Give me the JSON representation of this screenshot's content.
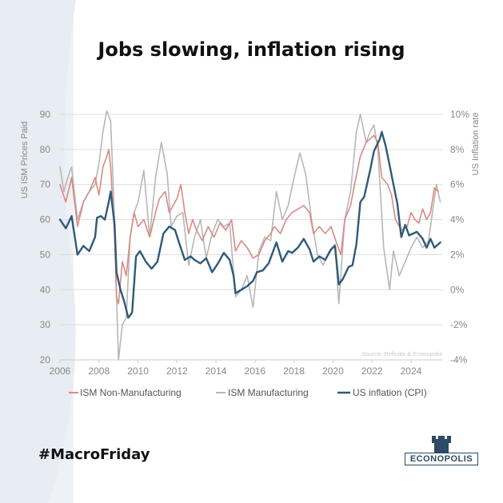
{
  "title": "Jobs slowing, inflation rising",
  "hashtag": "#MacroFriday",
  "brand": "ECONOPOLIS",
  "colors": {
    "ism_services": "#d98a82",
    "ism_manufacturing": "#b7b7b7",
    "cpi": "#2f5a7a",
    "brand": "#2d4a66",
    "grid": "#dddddd",
    "axis_text": "#888888"
  },
  "chart_data": {
    "type": "line",
    "title": "Jobs slowing, inflation rising",
    "xlabel": "",
    "ylabel": "US ISM Prices Paid",
    "ylabel_right": "US Inflation rate",
    "source": "Source: Refinitiv & Econopolis",
    "xlim": [
      2006,
      2025.6
    ],
    "ylim": [
      20,
      90
    ],
    "ylim_right": [
      -4,
      10
    ],
    "x_ticks": [
      "2006",
      "2008",
      "2010",
      "2012",
      "2014",
      "2016",
      "2018",
      "2020",
      "2022",
      "2024"
    ],
    "y_ticks": [
      "20",
      "30",
      "40",
      "50",
      "60",
      "70",
      "80",
      "90"
    ],
    "y_ticks_right": [
      "-4%",
      "-2%",
      "0%",
      "2%",
      "4%",
      "6%",
      "8%",
      "10%"
    ],
    "grid": true,
    "legend_position": "bottom",
    "series": [
      {
        "name": "ISM Non-Manufacturing",
        "axis": "left",
        "points": [
          [
            2006.0,
            70
          ],
          [
            2006.3,
            65
          ],
          [
            2006.6,
            72
          ],
          [
            2006.9,
            58
          ],
          [
            2007.2,
            65
          ],
          [
            2007.5,
            68
          ],
          [
            2007.8,
            72
          ],
          [
            2008.0,
            67
          ],
          [
            2008.2,
            75
          ],
          [
            2008.4,
            78
          ],
          [
            2008.5,
            80
          ],
          [
            2008.6,
            75
          ],
          [
            2008.8,
            55
          ],
          [
            2008.9,
            38
          ],
          [
            2009.0,
            36
          ],
          [
            2009.2,
            48
          ],
          [
            2009.4,
            44
          ],
          [
            2009.6,
            55
          ],
          [
            2009.8,
            62
          ],
          [
            2010.0,
            58
          ],
          [
            2010.3,
            60
          ],
          [
            2010.6,
            55
          ],
          [
            2010.9,
            62
          ],
          [
            2011.1,
            66
          ],
          [
            2011.4,
            68
          ],
          [
            2011.6,
            62
          ],
          [
            2011.9,
            65
          ],
          [
            2012.0,
            66
          ],
          [
            2012.2,
            70
          ],
          [
            2012.4,
            62
          ],
          [
            2012.6,
            56
          ],
          [
            2012.8,
            60
          ],
          [
            2013.0,
            57
          ],
          [
            2013.3,
            54
          ],
          [
            2013.6,
            58
          ],
          [
            2013.9,
            55
          ],
          [
            2014.2,
            59
          ],
          [
            2014.5,
            57
          ],
          [
            2014.8,
            60
          ],
          [
            2015.0,
            51
          ],
          [
            2015.3,
            54
          ],
          [
            2015.6,
            52
          ],
          [
            2015.9,
            49
          ],
          [
            2016.2,
            50
          ],
          [
            2016.5,
            54
          ],
          [
            2016.8,
            56
          ],
          [
            2017.0,
            58
          ],
          [
            2017.3,
            56
          ],
          [
            2017.6,
            60
          ],
          [
            2017.9,
            62
          ],
          [
            2018.2,
            63
          ],
          [
            2018.5,
            64
          ],
          [
            2018.8,
            62
          ],
          [
            2019.0,
            56
          ],
          [
            2019.3,
            58
          ],
          [
            2019.6,
            56
          ],
          [
            2019.9,
            58
          ],
          [
            2020.2,
            53
          ],
          [
            2020.4,
            50
          ],
          [
            2020.6,
            60
          ],
          [
            2020.9,
            64
          ],
          [
            2021.1,
            70
          ],
          [
            2021.4,
            78
          ],
          [
            2021.7,
            82
          ],
          [
            2021.9,
            83
          ],
          [
            2022.1,
            84
          ],
          [
            2022.3,
            82
          ],
          [
            2022.5,
            72
          ],
          [
            2022.8,
            70
          ],
          [
            2023.0,
            67
          ],
          [
            2023.2,
            60
          ],
          [
            2023.5,
            57
          ],
          [
            2023.8,
            58
          ],
          [
            2024.0,
            62
          ],
          [
            2024.2,
            60
          ],
          [
            2024.4,
            59
          ],
          [
            2024.6,
            63
          ],
          [
            2024.8,
            60
          ],
          [
            2025.0,
            62
          ],
          [
            2025.2,
            69
          ],
          [
            2025.4,
            68
          ]
        ]
      },
      {
        "name": "ISM Manufacturing",
        "axis": "left",
        "points": [
          [
            2006.0,
            75
          ],
          [
            2006.2,
            68
          ],
          [
            2006.4,
            72
          ],
          [
            2006.6,
            75
          ],
          [
            2006.9,
            60
          ],
          [
            2007.2,
            65
          ],
          [
            2007.5,
            68
          ],
          [
            2007.8,
            70
          ],
          [
            2008.0,
            76
          ],
          [
            2008.2,
            85
          ],
          [
            2008.4,
            91
          ],
          [
            2008.6,
            88
          ],
          [
            2008.8,
            60
          ],
          [
            2008.9,
            38
          ],
          [
            2009.0,
            20
          ],
          [
            2009.2,
            30
          ],
          [
            2009.4,
            32
          ],
          [
            2009.6,
            55
          ],
          [
            2009.8,
            62
          ],
          [
            2010.0,
            65
          ],
          [
            2010.3,
            74
          ],
          [
            2010.6,
            55
          ],
          [
            2010.9,
            72
          ],
          [
            2011.2,
            82
          ],
          [
            2011.5,
            73
          ],
          [
            2011.7,
            58
          ],
          [
            2012.0,
            61
          ],
          [
            2012.3,
            62
          ],
          [
            2012.6,
            47
          ],
          [
            2012.9,
            55
          ],
          [
            2013.2,
            60
          ],
          [
            2013.5,
            49
          ],
          [
            2013.8,
            56
          ],
          [
            2014.1,
            60
          ],
          [
            2014.4,
            58
          ],
          [
            2014.7,
            59
          ],
          [
            2015.0,
            38
          ],
          [
            2015.3,
            40
          ],
          [
            2015.6,
            44
          ],
          [
            2015.9,
            35
          ],
          [
            2016.2,
            51
          ],
          [
            2016.5,
            55
          ],
          [
            2016.8,
            54
          ],
          [
            2017.1,
            68
          ],
          [
            2017.4,
            60
          ],
          [
            2017.7,
            64
          ],
          [
            2018.0,
            72
          ],
          [
            2018.3,
            79
          ],
          [
            2018.6,
            73
          ],
          [
            2018.9,
            60
          ],
          [
            2019.2,
            50
          ],
          [
            2019.5,
            47
          ],
          [
            2019.8,
            51
          ],
          [
            2020.1,
            53
          ],
          [
            2020.3,
            36
          ],
          [
            2020.6,
            60
          ],
          [
            2020.9,
            68
          ],
          [
            2021.2,
            85
          ],
          [
            2021.4,
            90
          ],
          [
            2021.7,
            82
          ],
          [
            2021.9,
            85
          ],
          [
            2022.1,
            87
          ],
          [
            2022.3,
            80
          ],
          [
            2022.6,
            52
          ],
          [
            2022.9,
            40
          ],
          [
            2023.1,
            51
          ],
          [
            2023.4,
            44
          ],
          [
            2023.7,
            48
          ],
          [
            2024.0,
            52
          ],
          [
            2024.3,
            55
          ],
          [
            2024.6,
            52
          ],
          [
            2024.9,
            54
          ],
          [
            2025.1,
            62
          ],
          [
            2025.3,
            70
          ],
          [
            2025.5,
            65
          ]
        ]
      },
      {
        "name": "US inflation (CPI)",
        "axis": "right",
        "points": [
          [
            2006.0,
            4.0
          ],
          [
            2006.3,
            3.5
          ],
          [
            2006.6,
            4.2
          ],
          [
            2006.9,
            2.0
          ],
          [
            2007.2,
            2.5
          ],
          [
            2007.5,
            2.2
          ],
          [
            2007.8,
            3.0
          ],
          [
            2007.9,
            4.1
          ],
          [
            2008.1,
            4.2
          ],
          [
            2008.3,
            4.0
          ],
          [
            2008.5,
            5.0
          ],
          [
            2008.6,
            5.6
          ],
          [
            2008.8,
            3.7
          ],
          [
            2008.9,
            1.0
          ],
          [
            2009.1,
            0.0
          ],
          [
            2009.3,
            -0.7
          ],
          [
            2009.5,
            -1.6
          ],
          [
            2009.7,
            -1.3
          ],
          [
            2009.9,
            1.9
          ],
          [
            2010.1,
            2.2
          ],
          [
            2010.4,
            1.6
          ],
          [
            2010.7,
            1.2
          ],
          [
            2011.0,
            1.6
          ],
          [
            2011.3,
            3.2
          ],
          [
            2011.6,
            3.6
          ],
          [
            2011.9,
            3.4
          ],
          [
            2012.1,
            2.7
          ],
          [
            2012.4,
            1.7
          ],
          [
            2012.7,
            1.9
          ],
          [
            2012.9,
            1.7
          ],
          [
            2013.2,
            1.5
          ],
          [
            2013.5,
            1.8
          ],
          [
            2013.8,
            1.0
          ],
          [
            2014.1,
            1.5
          ],
          [
            2014.4,
            2.1
          ],
          [
            2014.7,
            1.7
          ],
          [
            2014.9,
            0.8
          ],
          [
            2015.0,
            -0.2
          ],
          [
            2015.3,
            0.0
          ],
          [
            2015.6,
            0.2
          ],
          [
            2015.9,
            0.5
          ],
          [
            2016.1,
            1.0
          ],
          [
            2016.4,
            1.1
          ],
          [
            2016.7,
            1.5
          ],
          [
            2016.9,
            2.1
          ],
          [
            2017.1,
            2.7
          ],
          [
            2017.4,
            1.6
          ],
          [
            2017.7,
            2.2
          ],
          [
            2017.9,
            2.1
          ],
          [
            2018.2,
            2.4
          ],
          [
            2018.5,
            2.9
          ],
          [
            2018.8,
            2.3
          ],
          [
            2019.0,
            1.6
          ],
          [
            2019.3,
            1.9
          ],
          [
            2019.6,
            1.7
          ],
          [
            2019.9,
            2.3
          ],
          [
            2020.1,
            2.5
          ],
          [
            2020.3,
            0.3
          ],
          [
            2020.5,
            0.6
          ],
          [
            2020.8,
            1.3
          ],
          [
            2021.0,
            1.4
          ],
          [
            2021.2,
            2.6
          ],
          [
            2021.4,
            5.0
          ],
          [
            2021.6,
            5.3
          ],
          [
            2021.9,
            6.8
          ],
          [
            2022.1,
            7.9
          ],
          [
            2022.4,
            8.6
          ],
          [
            2022.5,
            9.0
          ],
          [
            2022.7,
            8.2
          ],
          [
            2022.9,
            7.1
          ],
          [
            2023.1,
            6.0
          ],
          [
            2023.3,
            4.9
          ],
          [
            2023.5,
            3.0
          ],
          [
            2023.7,
            3.7
          ],
          [
            2023.9,
            3.1
          ],
          [
            2024.1,
            3.2
          ],
          [
            2024.3,
            3.3
          ],
          [
            2024.6,
            2.9
          ],
          [
            2024.8,
            2.4
          ],
          [
            2025.0,
            2.9
          ],
          [
            2025.2,
            2.4
          ],
          [
            2025.5,
            2.7
          ]
        ]
      }
    ]
  }
}
